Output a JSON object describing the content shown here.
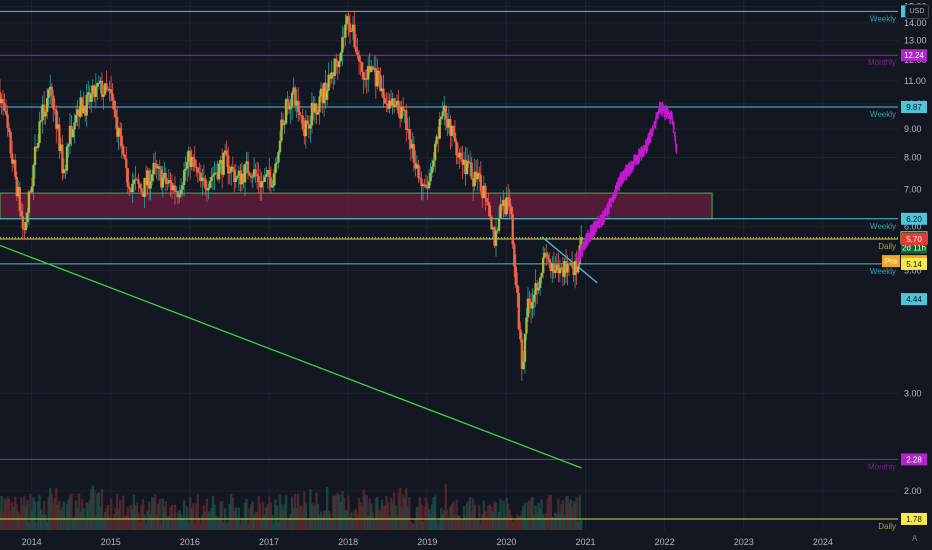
{
  "currency": "USD",
  "auto_scale_label": "A",
  "colors": {
    "background": "#131722",
    "grid": "#1f2330",
    "candle_up": "#26a69a",
    "candle_down": "#ef5350",
    "candle_glow_up": "#c0ca33",
    "candle_glow_down": "#ff7043",
    "projection": "#c21ad1",
    "cyan_level": "#4fc3d9",
    "purple_level": "#9c27b0",
    "yellow_level": "#d4d44a",
    "zone_fill": "#6b1e40",
    "zone_border": "#4caf50",
    "trendline_green": "#3fd13f",
    "trendline_cyan": "#4fc3d9"
  },
  "chart_data": {
    "type": "candlestick",
    "x_axis": {
      "labels": [
        "2014",
        "2015",
        "2016",
        "2017",
        "2018",
        "2019",
        "2020",
        "2021",
        "2022",
        "2023",
        "2024"
      ],
      "range": [
        "2013.6",
        "2024.95"
      ]
    },
    "y_axis": {
      "scale": "log",
      "range": [
        1.7,
        15.4
      ],
      "tick_labels": [
        "15.00",
        "14.00",
        "13.00",
        "12.00",
        "11.00",
        "10.00",
        "9.00",
        "8.00",
        "7.00",
        "6.00",
        "5.00",
        "3.00",
        "2.00"
      ],
      "tick_values": [
        15,
        14,
        13,
        12,
        11,
        10,
        9,
        8,
        7,
        6,
        5,
        3,
        2
      ]
    },
    "grid": true,
    "price_path": {
      "t": [
        2013.6,
        2013.75,
        2013.9,
        2014.0,
        2014.1,
        2014.25,
        2014.4,
        2014.55,
        2014.7,
        2014.85,
        2015.0,
        2015.2,
        2015.4,
        2015.55,
        2015.7,
        2015.85,
        2016.0,
        2016.15,
        2016.3,
        2016.45,
        2016.6,
        2016.75,
        2016.9,
        2017.05,
        2017.2,
        2017.3,
        2017.45,
        2017.6,
        2017.75,
        2017.9,
        2018.0,
        2018.08,
        2018.2,
        2018.3,
        2018.45,
        2018.55,
        2018.7,
        2018.85,
        2018.95,
        2019.05,
        2019.2,
        2019.3,
        2019.45,
        2019.6,
        2019.75,
        2019.85,
        2019.95,
        2020.05,
        2020.12,
        2020.2,
        2020.25,
        2020.35,
        2020.5,
        2020.6,
        2020.7,
        2020.8,
        2020.9,
        2020.95
      ],
      "close": [
        10.5,
        8.0,
        5.8,
        7.2,
        9.3,
        10.5,
        7.5,
        9.8,
        10.0,
        10.7,
        10.3,
        7.3,
        7.0,
        7.6,
        7.2,
        7.0,
        8.0,
        7.1,
        7.5,
        7.9,
        7.3,
        7.7,
        7.2,
        7.4,
        9.7,
        10.4,
        9.1,
        10.0,
        10.8,
        12.5,
        14.4,
        13.0,
        11.0,
        11.7,
        10.2,
        9.9,
        9.5,
        7.9,
        6.9,
        7.3,
        9.8,
        8.9,
        7.9,
        7.3,
        6.9,
        5.7,
        6.7,
        6.4,
        4.7,
        3.3,
        4.2,
        4.6,
        5.3,
        4.9,
        5.0,
        5.2,
        5.0,
        5.6
      ]
    },
    "projection": {
      "t": [
        2020.9,
        2021.05,
        2021.25,
        2021.45,
        2021.6,
        2021.75,
        2021.85,
        2021.95,
        2022.02,
        2022.1,
        2022.15
      ],
      "price": [
        5.2,
        5.8,
        6.3,
        7.3,
        7.8,
        8.3,
        8.9,
        9.9,
        9.6,
        9.4,
        8.3
      ]
    },
    "zone": {
      "low": 6.2,
      "high": 6.9,
      "t_start": 2013.6,
      "t_end": 2022.6
    },
    "levels": [
      {
        "price": 14.69,
        "label": "14.69",
        "note": "Weekly",
        "kind": "cyan"
      },
      {
        "price": 12.24,
        "label": "12.24",
        "note": "Monthly",
        "kind": "purple"
      },
      {
        "price": 9.87,
        "label": "9.87",
        "note": "Weekly",
        "kind": "cyan"
      },
      {
        "price": 6.2,
        "label": "6.20",
        "note": "Weekly",
        "kind": "cyan"
      },
      {
        "price": 5.73,
        "label": "5.73",
        "note": "",
        "kind": "yellow-dotted"
      },
      {
        "price": 5.7,
        "label": "5.70",
        "note": "Daily",
        "kind": "yellow"
      },
      {
        "price": 5.14,
        "label": "5.14",
        "note": "Weekly",
        "kind": "cyan"
      },
      {
        "price": 2.28,
        "label": "2.28",
        "note": "Monthly",
        "kind": "purple"
      },
      {
        "price": 1.78,
        "label": "1.78",
        "note": "Daily",
        "kind": "yellow"
      }
    ],
    "price_tags": [
      {
        "price": 6.2,
        "text": "6.20",
        "bg": "#4fc3d9",
        "fg": "#131722"
      },
      {
        "price": 5.73,
        "text": "5.73",
        "bg": "#1b1e28",
        "fg": "#d4d44a",
        "border": "#d4d44a"
      },
      {
        "price": 5.5,
        "text": "2d 11h",
        "bg": "#0c6b2c",
        "fg": "#ffffff"
      },
      {
        "price": 5.7,
        "text": "5.70",
        "bg": "#e53935",
        "fg": "#ffffff"
      },
      {
        "price": 5.2,
        "text": "5.70",
        "prefix": "Pre",
        "bg": "#f5a623",
        "fg": "#ffffff"
      },
      {
        "price": 5.14,
        "text": "5.14",
        "bg": "#f6e94b",
        "fg": "#131722"
      },
      {
        "price": 4.44,
        "text": "4.44",
        "bg": "#4fc3d9",
        "fg": "#131722"
      },
      {
        "price": 14.69,
        "text": "14.69",
        "bg": "#4fc3d9",
        "fg": "#131722"
      },
      {
        "price": 12.24,
        "text": "12.24",
        "bg": "#b125c9",
        "fg": "#ffffff"
      },
      {
        "price": 9.87,
        "text": "9.87",
        "bg": "#4fc3d9",
        "fg": "#131722"
      },
      {
        "price": 2.28,
        "text": "2.28",
        "bg": "#b125c9",
        "fg": "#ffffff"
      },
      {
        "price": 1.78,
        "text": "1.78",
        "bg": "#f6e94b",
        "fg": "#131722"
      }
    ],
    "trendlines": [
      {
        "kind": "green",
        "t1": 2013.6,
        "p1": 5.55,
        "t2": 2020.95,
        "p2": 2.2
      },
      {
        "kind": "cyan",
        "t1": 2020.45,
        "p1": 5.75,
        "t2": 2021.15,
        "p2": 4.75
      }
    ]
  }
}
